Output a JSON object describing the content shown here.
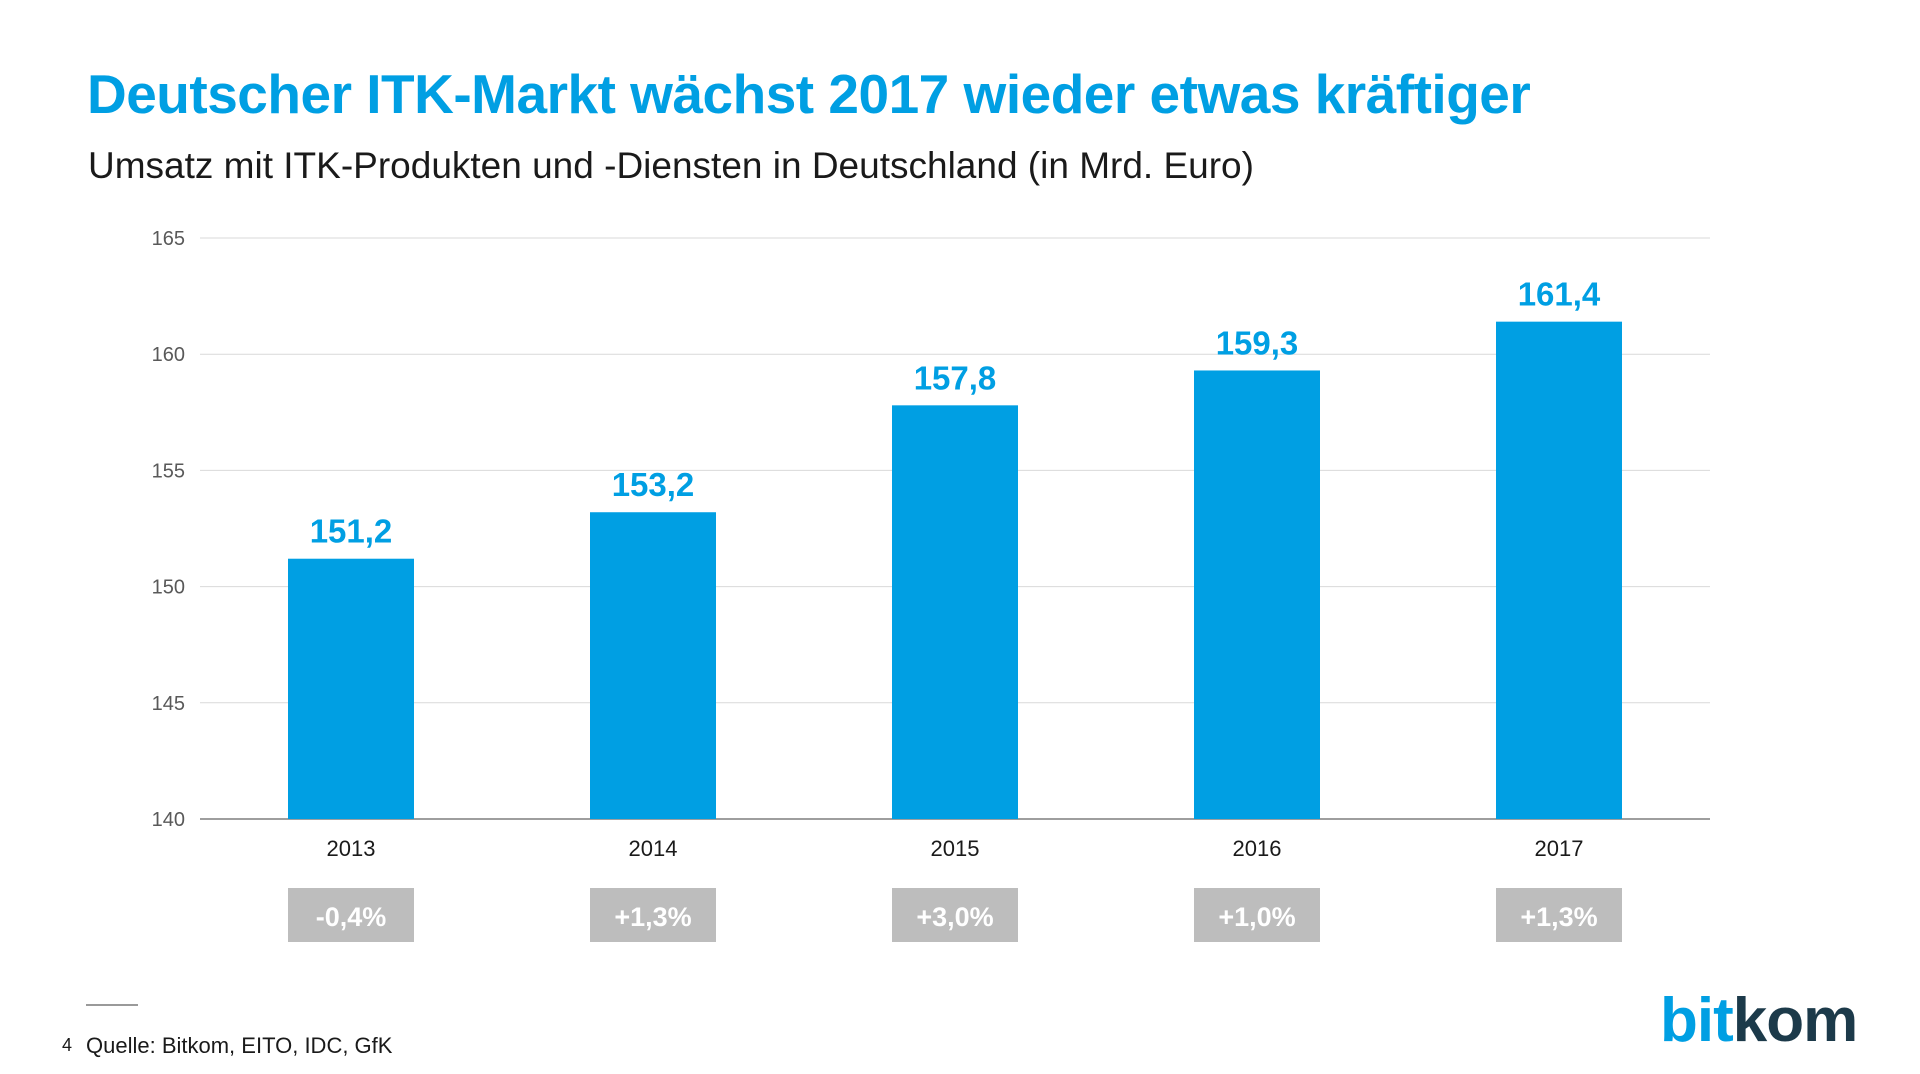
{
  "title": "Deutscher ITK-Markt wächst 2017 wieder etwas kräftiger",
  "subtitle": "Umsatz mit ITK-Produkten und -Diensten in Deutschland (in Mrd. Euro)",
  "colors": {
    "accent": "#009fe3",
    "badge": "#bdbdbd",
    "grid": "#d9d9d9",
    "axis": "#7f7f7f"
  },
  "chart_data": {
    "type": "bar",
    "title": "Deutscher ITK-Markt wächst 2017 wieder etwas kräftiger",
    "subtitle": "Umsatz mit ITK-Produkten und -Diensten in Deutschland (in Mrd. Euro)",
    "xlabel": "",
    "ylabel": "",
    "categories": [
      "2013",
      "2014",
      "2015",
      "2016",
      "2017"
    ],
    "values": [
      151.2,
      153.2,
      157.8,
      159.3,
      161.4
    ],
    "value_labels": [
      "151,2",
      "153,2",
      "157,8",
      "159,3",
      "161,4"
    ],
    "growth_labels": [
      "-0,4%",
      "+1,3%",
      "+3,0%",
      "+1,0%",
      "+1,3%"
    ],
    "ylim": [
      140,
      165
    ],
    "yticks": [
      140,
      145,
      150,
      155,
      160,
      165
    ],
    "grid": true,
    "legend": "none"
  },
  "footer": {
    "page_number": "4",
    "source": "Quelle: Bitkom, EITO, IDC, GfK"
  },
  "logo": {
    "part1": "bit",
    "part2": "kom"
  }
}
